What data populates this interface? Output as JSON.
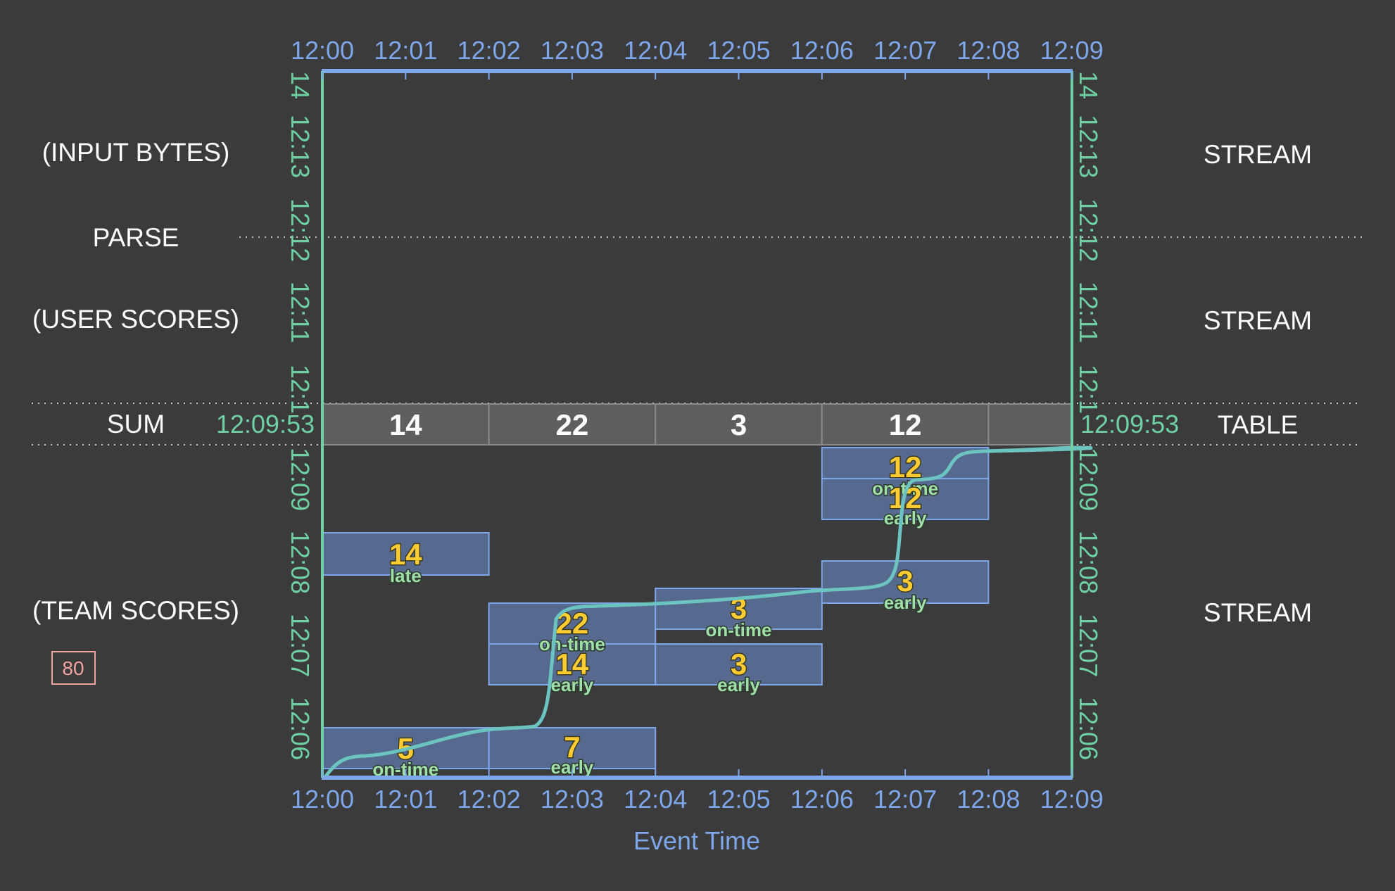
{
  "top_axis": {
    "ticks": [
      "12:00",
      "12:01",
      "12:02",
      "12:03",
      "12:04",
      "12:05",
      "12:06",
      "12:07",
      "12:08",
      "12:09"
    ]
  },
  "bottom_axis": {
    "ticks": [
      "12:00",
      "12:01",
      "12:02",
      "12:03",
      "12:04",
      "12:05",
      "12:06",
      "12:07",
      "12:08",
      "12:09"
    ],
    "label": "Event Time"
  },
  "proc_axis_upper": {
    "ticks": [
      "14",
      "12:13",
      "12:12",
      "12:11",
      "12:1"
    ]
  },
  "proc_axis_lower": {
    "ticks": [
      "12:09",
      "12:08",
      "12:07",
      "12:06"
    ]
  },
  "left_labels": {
    "input": "(INPUT BYTES)",
    "parse": "PARSE",
    "user": "(USER SCORES)",
    "sum": "SUM",
    "team": "(TEAM SCORES)"
  },
  "right_labels": {
    "stream1": "STREAM",
    "stream2": "STREAM",
    "table": "TABLE",
    "stream3": "STREAM"
  },
  "watermark_time_left": "12:09:53",
  "watermark_time_right": "12:09:53",
  "badge": "80",
  "sum_row": [
    {
      "start": 0,
      "end": 2,
      "value": "14"
    },
    {
      "start": 2,
      "end": 4,
      "value": "22"
    },
    {
      "start": 4,
      "end": 6,
      "value": "3"
    },
    {
      "start": 6,
      "end": 8,
      "value": "12"
    },
    {
      "start": 8,
      "end": 9,
      "value": ""
    }
  ],
  "panes": [
    {
      "start": 0,
      "end": 2,
      "value": "14",
      "label": "late"
    },
    {
      "start": 0,
      "end": 2,
      "value": "5",
      "label": "on-time"
    },
    {
      "start": 2,
      "end": 4,
      "value": "7",
      "label": "early"
    },
    {
      "start": 2,
      "end": 4,
      "value": "22",
      "label": "on-time"
    },
    {
      "start": 2,
      "end": 4,
      "value": "14",
      "label": "early"
    },
    {
      "start": 4,
      "end": 6,
      "value": "3",
      "label": "on-time"
    },
    {
      "start": 4,
      "end": 6,
      "value": "3",
      "label": "early"
    },
    {
      "start": 6,
      "end": 8,
      "value": "3",
      "label": "early"
    },
    {
      "start": 6,
      "end": 8,
      "value": "12",
      "label": "on-time"
    },
    {
      "start": 6,
      "end": 8,
      "value": "12",
      "label": "early"
    }
  ],
  "colors": {
    "background": "#3b3b3b",
    "event_axis": "#7ea6ea",
    "processing_axis": "#6ed0a3",
    "watermark": "#6cc4c0",
    "pane_fill": "#56698f",
    "value": "#ffcc33",
    "badge": "#f2a3a0"
  }
}
